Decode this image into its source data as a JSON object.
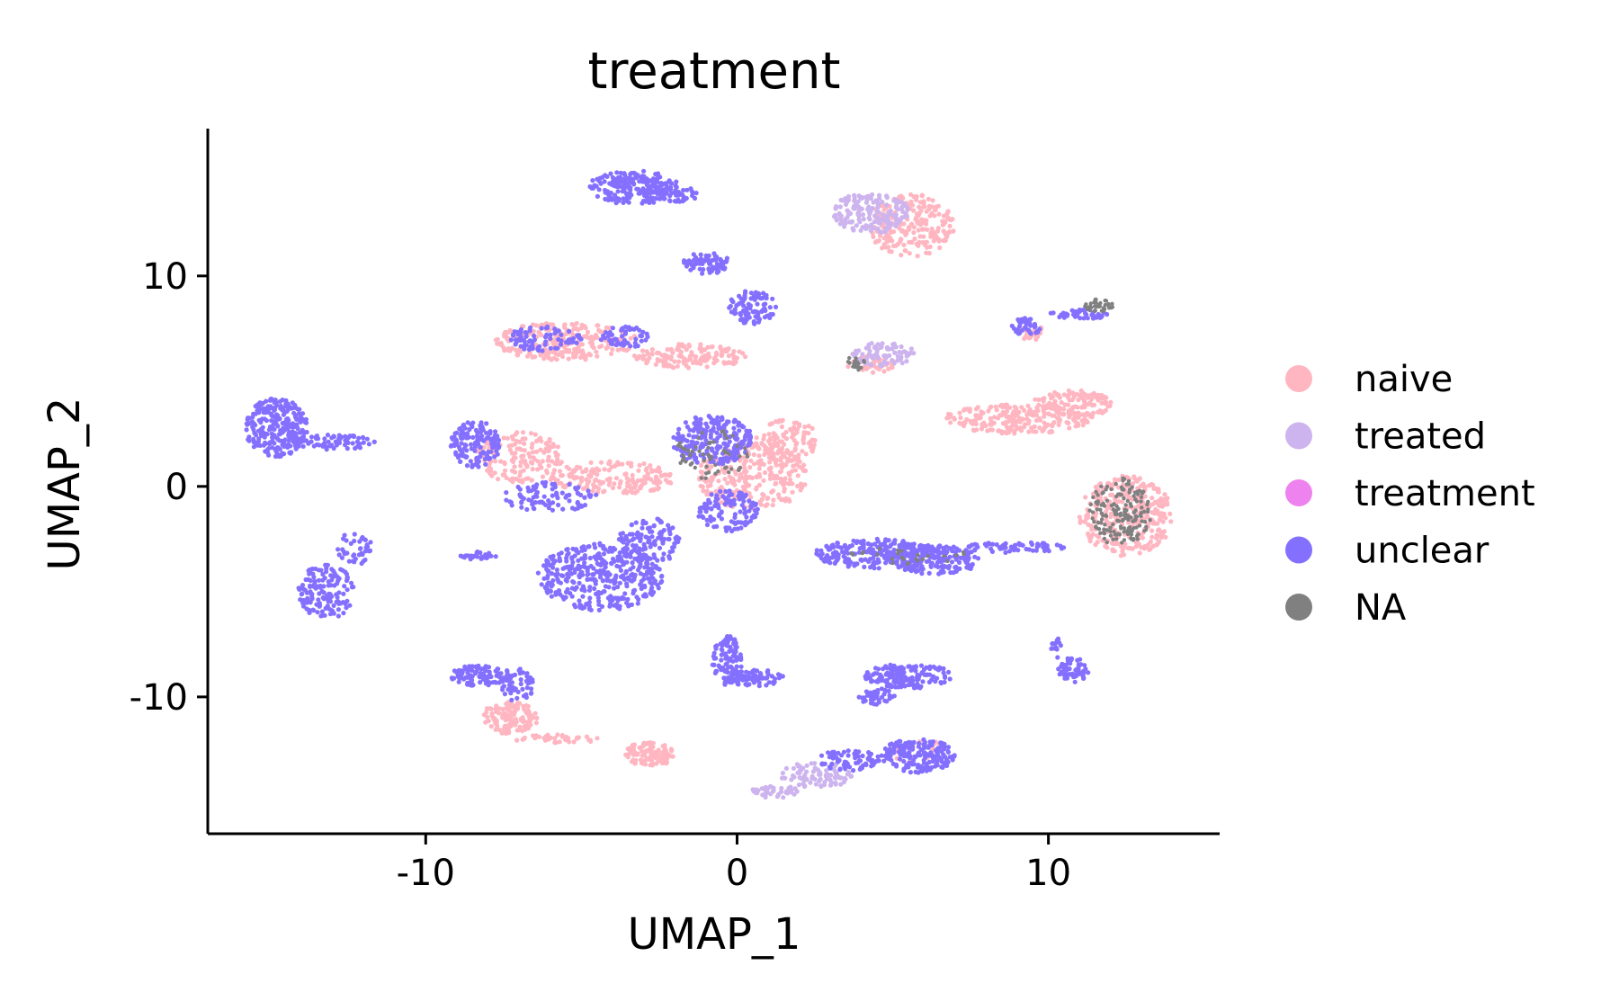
{
  "chart_data": {
    "type": "scatter",
    "title": "treatment",
    "xlabel": "UMAP_1",
    "ylabel": "UMAP_2",
    "xlim": [
      -17,
      15.5
    ],
    "ylim": [
      -16.5,
      17
    ],
    "xticks": [
      {
        "value": -10,
        "label": "-10"
      },
      {
        "value": 0,
        "label": "0"
      },
      {
        "value": 10,
        "label": "10"
      }
    ],
    "yticks": [
      {
        "value": 10,
        "label": "10"
      },
      {
        "value": 0,
        "label": "0"
      },
      {
        "value": -10,
        "label": "-10"
      }
    ],
    "grid": false,
    "legend_position": "right",
    "series": [
      {
        "name": "naive",
        "color": "#FFB6C1"
      },
      {
        "name": "treated",
        "color": "#CDB4EE"
      },
      {
        "name": "treatment",
        "color": "#EE82EE"
      },
      {
        "name": "unclear",
        "color": "#8470FF"
      },
      {
        "name": "NA",
        "color": "#808080"
      }
    ],
    "clusters": [
      {
        "series": "unclear",
        "cx": -14.8,
        "cy": 2.8,
        "rx": 1.0,
        "ry": 1.4,
        "n": 260
      },
      {
        "series": "unclear",
        "cx": -13.0,
        "cy": 2.1,
        "rx": 1.4,
        "ry": 0.35,
        "n": 70
      },
      {
        "series": "unclear",
        "cx": -13.2,
        "cy": -5.0,
        "rx": 0.9,
        "ry": 1.3,
        "n": 140
      },
      {
        "series": "unclear",
        "cx": -12.3,
        "cy": -3.0,
        "rx": 0.6,
        "ry": 0.8,
        "n": 40
      },
      {
        "series": "unclear",
        "cx": -3.3,
        "cy": 14.2,
        "rx": 1.5,
        "ry": 0.8,
        "n": 190
      },
      {
        "series": "unclear",
        "cx": -2.2,
        "cy": 13.9,
        "rx": 1.0,
        "ry": 0.4,
        "n": 60
      },
      {
        "series": "unclear",
        "cx": -1.0,
        "cy": 10.6,
        "rx": 0.8,
        "ry": 0.5,
        "n": 80
      },
      {
        "series": "unclear",
        "cx": 0.5,
        "cy": 8.5,
        "rx": 0.8,
        "ry": 0.8,
        "n": 90
      },
      {
        "series": "naive",
        "cx": -5.5,
        "cy": 6.9,
        "rx": 2.3,
        "ry": 0.9,
        "n": 260
      },
      {
        "series": "naive",
        "cx": -1.5,
        "cy": 6.2,
        "rx": 1.8,
        "ry": 0.6,
        "n": 140
      },
      {
        "series": "unclear",
        "cx": -6.2,
        "cy": 7.0,
        "rx": 1.2,
        "ry": 0.6,
        "n": 80
      },
      {
        "series": "unclear",
        "cx": -3.6,
        "cy": 7.1,
        "rx": 0.8,
        "ry": 0.5,
        "n": 50
      },
      {
        "series": "treated",
        "cx": 4.3,
        "cy": 13.0,
        "rx": 1.2,
        "ry": 1.0,
        "n": 160
      },
      {
        "series": "naive",
        "cx": 5.6,
        "cy": 12.4,
        "rx": 1.4,
        "ry": 1.5,
        "n": 220
      },
      {
        "series": "treated",
        "cx": 4.7,
        "cy": 6.3,
        "rx": 1.0,
        "ry": 0.6,
        "n": 80
      },
      {
        "series": "naive",
        "cx": 4.3,
        "cy": 5.8,
        "rx": 0.8,
        "ry": 0.4,
        "n": 40
      },
      {
        "series": "NA",
        "cx": 3.8,
        "cy": 5.9,
        "rx": 0.3,
        "ry": 0.4,
        "n": 20
      },
      {
        "series": "unclear",
        "cx": 9.3,
        "cy": 7.6,
        "rx": 0.5,
        "ry": 0.4,
        "n": 40
      },
      {
        "series": "naive",
        "cx": 9.5,
        "cy": 7.3,
        "rx": 0.4,
        "ry": 0.4,
        "n": 25
      },
      {
        "series": "unclear",
        "cx": 11.0,
        "cy": 8.2,
        "rx": 1.0,
        "ry": 0.25,
        "n": 40
      },
      {
        "series": "NA",
        "cx": 11.6,
        "cy": 8.6,
        "rx": 0.5,
        "ry": 0.3,
        "n": 40
      },
      {
        "series": "naive",
        "cx": 9.0,
        "cy": 3.2,
        "rx": 2.4,
        "ry": 0.7,
        "n": 220
      },
      {
        "series": "naive",
        "cx": 10.8,
        "cy": 3.9,
        "rx": 1.3,
        "ry": 0.7,
        "n": 120
      },
      {
        "series": "unclear",
        "cx": -8.4,
        "cy": 2.0,
        "rx": 0.8,
        "ry": 1.1,
        "n": 140
      },
      {
        "series": "naive",
        "cx": -7.0,
        "cy": 1.4,
        "rx": 1.4,
        "ry": 1.2,
        "n": 150
      },
      {
        "series": "naive",
        "cx": -4.0,
        "cy": 0.4,
        "rx": 2.0,
        "ry": 0.8,
        "n": 180
      },
      {
        "series": "unclear",
        "cx": -6.0,
        "cy": -0.5,
        "rx": 1.5,
        "ry": 0.7,
        "n": 90
      },
      {
        "series": "unclear",
        "cx": -4.4,
        "cy": -4.3,
        "rx": 2.0,
        "ry": 1.6,
        "n": 380
      },
      {
        "series": "unclear",
        "cx": -2.8,
        "cy": -2.6,
        "rx": 1.0,
        "ry": 1.1,
        "n": 120
      },
      {
        "series": "unclear",
        "cx": -0.8,
        "cy": 2.2,
        "rx": 1.3,
        "ry": 1.2,
        "n": 230
      },
      {
        "series": "NA",
        "cx": -0.8,
        "cy": 1.5,
        "rx": 1.2,
        "ry": 1.2,
        "n": 60
      },
      {
        "series": "naive",
        "cx": 0.5,
        "cy": 0.5,
        "rx": 1.8,
        "ry": 1.6,
        "n": 280
      },
      {
        "series": "naive",
        "cx": 1.6,
        "cy": 2.2,
        "rx": 1.0,
        "ry": 1.0,
        "n": 100
      },
      {
        "series": "unclear",
        "cx": -0.3,
        "cy": -1.2,
        "rx": 1.0,
        "ry": 1.0,
        "n": 120
      },
      {
        "series": "unclear",
        "cx": 4.5,
        "cy": -3.2,
        "rx": 2.0,
        "ry": 0.7,
        "n": 240
      },
      {
        "series": "unclear",
        "cx": 6.4,
        "cy": -3.5,
        "rx": 1.4,
        "ry": 0.7,
        "n": 170
      },
      {
        "series": "unclear",
        "cx": 8.9,
        "cy": -2.9,
        "rx": 1.6,
        "ry": 0.25,
        "n": 60
      },
      {
        "series": "NA",
        "cx": 5.5,
        "cy": -3.3,
        "rx": 2.0,
        "ry": 0.4,
        "n": 25
      },
      {
        "series": "naive",
        "cx": 12.5,
        "cy": -1.4,
        "rx": 1.5,
        "ry": 1.9,
        "n": 340
      },
      {
        "series": "NA",
        "cx": 12.3,
        "cy": -1.2,
        "rx": 1.0,
        "ry": 1.6,
        "n": 170
      },
      {
        "series": "unclear",
        "cx": -8.3,
        "cy": -3.3,
        "rx": 0.6,
        "ry": 0.2,
        "n": 25
      },
      {
        "series": "unclear",
        "cx": -8.3,
        "cy": -9.0,
        "rx": 0.9,
        "ry": 0.5,
        "n": 90
      },
      {
        "series": "unclear",
        "cx": -7.1,
        "cy": -9.4,
        "rx": 0.6,
        "ry": 0.8,
        "n": 60
      },
      {
        "series": "naive",
        "cx": -7.3,
        "cy": -11.0,
        "rx": 0.9,
        "ry": 0.8,
        "n": 130
      },
      {
        "series": "naive",
        "cx": -5.8,
        "cy": -12.0,
        "rx": 1.4,
        "ry": 0.2,
        "n": 35
      },
      {
        "series": "naive",
        "cx": -2.8,
        "cy": -12.7,
        "rx": 0.8,
        "ry": 0.6,
        "n": 110
      },
      {
        "series": "unclear",
        "cx": -0.3,
        "cy": -8.3,
        "rx": 0.5,
        "ry": 1.2,
        "n": 110
      },
      {
        "series": "unclear",
        "cx": 0.6,
        "cy": -9.1,
        "rx": 0.9,
        "ry": 0.4,
        "n": 70
      },
      {
        "series": "unclear",
        "cx": 5.5,
        "cy": -9.0,
        "rx": 1.4,
        "ry": 0.6,
        "n": 150
      },
      {
        "series": "unclear",
        "cx": 4.5,
        "cy": -10.0,
        "rx": 0.6,
        "ry": 0.4,
        "n": 40
      },
      {
        "series": "unclear",
        "cx": 10.8,
        "cy": -8.7,
        "rx": 0.5,
        "ry": 0.6,
        "n": 60
      },
      {
        "series": "unclear",
        "cx": 10.2,
        "cy": -7.6,
        "rx": 0.2,
        "ry": 0.6,
        "n": 15
      },
      {
        "series": "unclear",
        "cx": 5.8,
        "cy": -12.8,
        "rx": 1.2,
        "ry": 0.8,
        "n": 180
      },
      {
        "series": "unclear",
        "cx": 3.6,
        "cy": -13.0,
        "rx": 1.0,
        "ry": 0.5,
        "n": 70
      },
      {
        "series": "treated",
        "cx": 2.6,
        "cy": -13.7,
        "rx": 1.2,
        "ry": 0.6,
        "n": 90
      },
      {
        "series": "treated",
        "cx": 1.2,
        "cy": -14.5,
        "rx": 0.8,
        "ry": 0.3,
        "n": 40
      },
      {
        "series": "naive",
        "cx": 5.8,
        "cy": -12.6,
        "rx": 0.9,
        "ry": 0.6,
        "n": 25
      }
    ]
  }
}
